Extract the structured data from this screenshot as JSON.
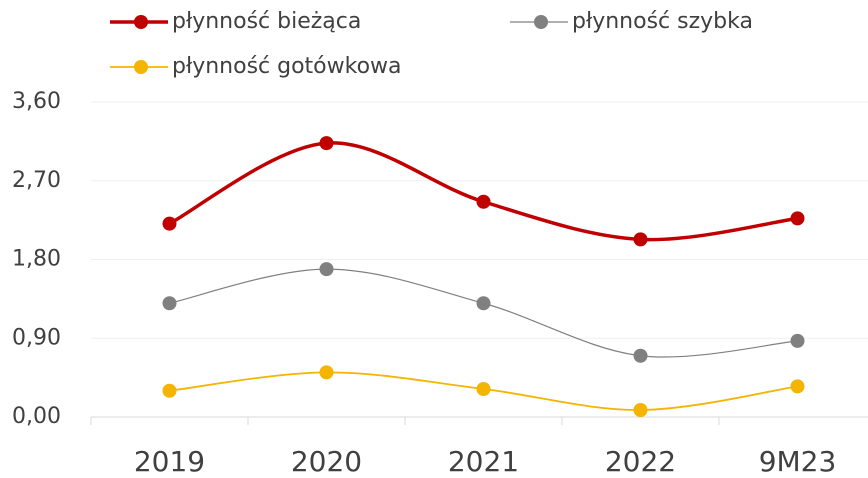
{
  "chart_data": {
    "type": "line",
    "categories": [
      "2019",
      "2020",
      "2021",
      "2022",
      "9M23"
    ],
    "series": [
      {
        "name": "płynność bieżąca",
        "color": "#c00000",
        "values": [
          2.21,
          3.13,
          2.46,
          2.03,
          2.27
        ]
      },
      {
        "name": "płynność szybka",
        "color": "#808080",
        "values": [
          1.3,
          1.69,
          1.3,
          0.7,
          0.87
        ]
      },
      {
        "name": "płynność gotówkowa",
        "color": "#f4b400",
        "values": [
          0.3,
          0.51,
          0.32,
          0.08,
          0.35
        ]
      }
    ],
    "ylim": [
      0,
      3.6
    ],
    "yticks": [
      {
        "value": 0,
        "label": "0,00"
      },
      {
        "value": 0.9,
        "label": "0,90"
      },
      {
        "value": 1.8,
        "label": "1,80"
      },
      {
        "value": 2.7,
        "label": "2,70"
      },
      {
        "value": 3.6,
        "label": "3,60"
      }
    ],
    "grid": true,
    "legend": "top",
    "smooth": true
  }
}
